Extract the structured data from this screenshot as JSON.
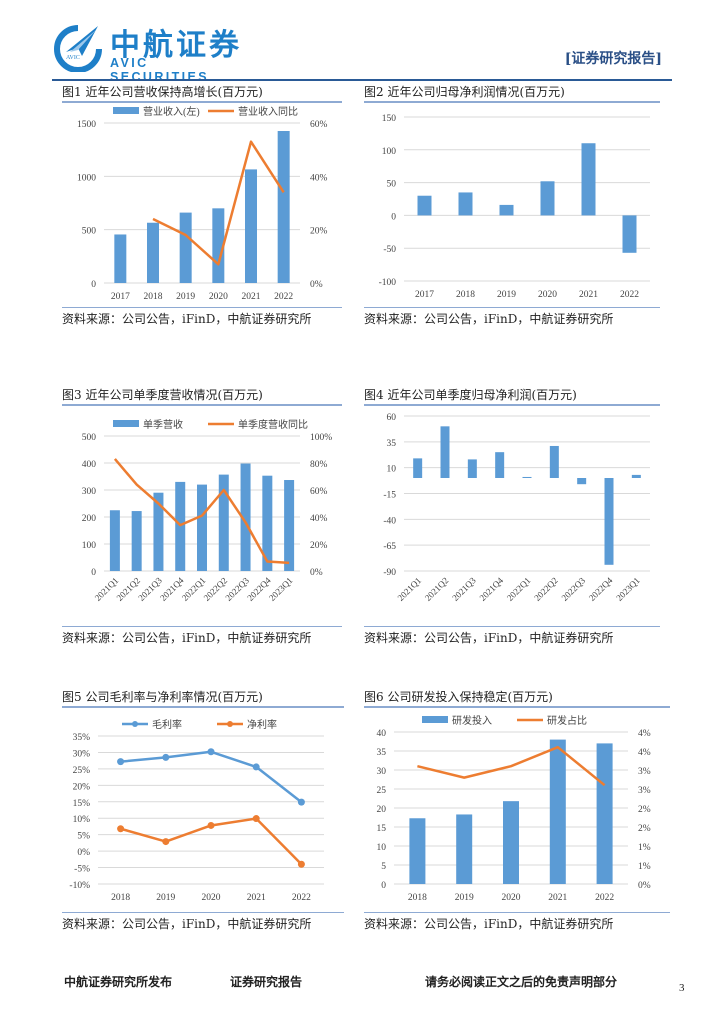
{
  "header": {
    "logo_cn": "中航证券",
    "logo_en": "AVIC SECURITIES",
    "logo_badge": "AVIC",
    "report_tag": "[证券研究报告]",
    "brand_color": "#1e7fc8"
  },
  "colors": {
    "bar": "#5b9bd5",
    "line": "#ed7d31",
    "grid": "#d9d9d9",
    "rule": "#2a5a96"
  },
  "figures": [
    {
      "title": "图1 近年公司营收保持高增长(百万元)",
      "source": "资料来源：公司公告，iFinD，中航证券研究所"
    },
    {
      "title": "图2 近年公司归母净利润情况(百万元)",
      "source": "资料来源：公司公告，iFinD，中航证券研究所"
    },
    {
      "title": "图3 近年公司单季度营收情况(百万元)",
      "source": "资料来源：公司公告，iFinD，中航证券研究所"
    },
    {
      "title": "图4 近年公司单季度归母净利润(百万元)",
      "source": "资料来源：公司公告，iFinD，中航证券研究所"
    },
    {
      "title": "图5 公司毛利率与净利率情况(百万元)",
      "source": "资料来源：公司公告，iFinD，中航证券研究所"
    },
    {
      "title": "图6 公司研发投入保持稳定(百万元)",
      "source": "资料来源：公司公告，iFinD，中航证券研究所"
    }
  ],
  "chart_data": [
    {
      "type": "bar",
      "title": "图1 近年公司营收保持高增长(百万元)",
      "categories": [
        "2017",
        "2018",
        "2019",
        "2020",
        "2021",
        "2022"
      ],
      "series": [
        {
          "name": "营业收入(左)",
          "kind": "bar",
          "axis": "left",
          "values": [
            455,
            565,
            660,
            700,
            1065,
            1425
          ]
        },
        {
          "name": "营业收入同比",
          "kind": "line",
          "axis": "right",
          "values": [
            null,
            24,
            18,
            7,
            53,
            34
          ]
        }
      ],
      "ylim": [
        0,
        1500
      ],
      "yticks": [
        "0",
        "500",
        "1000",
        "1500"
      ],
      "y2lim": [
        0,
        60
      ],
      "y2ticks": [
        "0%",
        "20%",
        "40%",
        "60%"
      ],
      "legend": "top",
      "grid": true
    },
    {
      "type": "bar",
      "title": "图2 近年公司归母净利润情况(百万元)",
      "categories": [
        "2017",
        "2018",
        "2019",
        "2020",
        "2021",
        "2022"
      ],
      "series": [
        {
          "name": "归母净利润",
          "kind": "bar",
          "axis": "left",
          "values": [
            30,
            35,
            16,
            52,
            110,
            -57
          ]
        }
      ],
      "ylim": [
        -100,
        150
      ],
      "yticks": [
        "-100",
        "-50",
        "0",
        "50",
        "100",
        "150"
      ],
      "legend": "none",
      "grid": true
    },
    {
      "type": "bar",
      "title": "图3 近年公司单季度营收情况(百万元)",
      "categories": [
        "2021Q1",
        "2021Q2",
        "2021Q3",
        "2021Q4",
        "2022Q1",
        "2022Q2",
        "2022Q3",
        "2022Q4",
        "2023Q1"
      ],
      "series": [
        {
          "name": "单季营收",
          "kind": "bar",
          "axis": "left",
          "values": [
            225,
            222,
            290,
            330,
            320,
            357,
            398,
            353,
            337
          ]
        },
        {
          "name": "单季度营收同比",
          "kind": "line",
          "axis": "right",
          "values": [
            83,
            64,
            50,
            34,
            41,
            60,
            36,
            7,
            6
          ]
        }
      ],
      "ylim": [
        0,
        500
      ],
      "yticks": [
        "0",
        "100",
        "200",
        "300",
        "400",
        "500"
      ],
      "y2lim": [
        0,
        100
      ],
      "y2ticks": [
        "0%",
        "20%",
        "40%",
        "60%",
        "80%",
        "100%"
      ],
      "legend": "top",
      "grid": true,
      "rotated_xlabels": true
    },
    {
      "type": "bar",
      "title": "图4 近年公司单季度归母净利润(百万元)",
      "categories": [
        "2021Q1",
        "2021Q2",
        "2021Q3",
        "2021Q4",
        "2022Q1",
        "2022Q2",
        "2022Q3",
        "2022Q4",
        "2023Q1"
      ],
      "series": [
        {
          "name": "单季度归母净利润",
          "kind": "bar",
          "axis": "left",
          "values": [
            19,
            50,
            18,
            25,
            1,
            31,
            -6,
            -84,
            3
          ]
        }
      ],
      "ylim": [
        -90,
        60
      ],
      "yticks": [
        "-90",
        "-65",
        "-40",
        "-15",
        "10",
        "35",
        "60"
      ],
      "legend": "none",
      "grid": true,
      "rotated_xlabels": true
    },
    {
      "type": "line",
      "title": "图5 公司毛利率与净利率情况(百万元)",
      "categories": [
        "2018",
        "2019",
        "2020",
        "2021",
        "2022"
      ],
      "series": [
        {
          "name": "毛利率",
          "kind": "line",
          "color": "#5b9bd5",
          "values": [
            27.2,
            28.5,
            30.2,
            25.6,
            14.9
          ]
        },
        {
          "name": "净利率",
          "kind": "line",
          "color": "#ed7d31",
          "values": [
            6.8,
            2.9,
            7.8,
            9.9,
            -4.0
          ]
        }
      ],
      "ylim": [
        -10,
        35
      ],
      "yticks": [
        "-10%",
        "-5%",
        "0%",
        "5%",
        "10%",
        "15%",
        "20%",
        "25%",
        "30%",
        "35%"
      ],
      "legend": "top",
      "grid": true,
      "markers": true
    },
    {
      "type": "bar",
      "title": "图6 公司研发投入保持稳定(百万元)",
      "categories": [
        "2018",
        "2019",
        "2020",
        "2021",
        "2022"
      ],
      "series": [
        {
          "name": "研发投入",
          "kind": "bar",
          "axis": "left",
          "values": [
            17.3,
            18.3,
            21.8,
            38.0,
            37.0
          ]
        },
        {
          "name": "研发占比",
          "kind": "line",
          "axis": "right",
          "values": [
            3.1,
            2.8,
            3.1,
            3.6,
            2.6
          ]
        }
      ],
      "ylim": [
        0,
        40
      ],
      "yticks": [
        "0",
        "5",
        "10",
        "15",
        "20",
        "25",
        "30",
        "35",
        "40"
      ],
      "y2lim": [
        0,
        4
      ],
      "y2ticks": [
        "0%",
        "1%",
        "1%",
        "2%",
        "2%",
        "3%",
        "3%",
        "4%",
        "4%"
      ],
      "legend": "top",
      "grid": true
    }
  ],
  "footer": {
    "left": "中航证券研究所发布",
    "center": "证券研究报告",
    "right": "请务必阅读正文之后的免责声明部分",
    "page": "3"
  }
}
